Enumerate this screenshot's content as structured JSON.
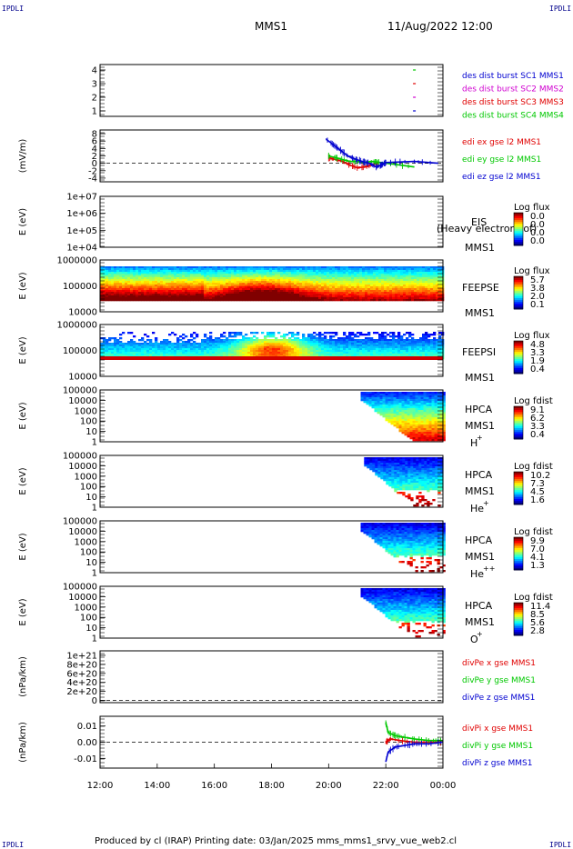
{
  "corner_tag": "IPDLI",
  "header": {
    "mission": "MMS1",
    "datetime": "11/Aug/2022 12:00"
  },
  "footer": {
    "text": "Produced by cl (IRAP)   Printing date: 03/Jan/2025   mms_mms1_srvy_vue_web2.cl"
  },
  "colors": {
    "red": "#e00000",
    "green": "#00c800",
    "blue": "#0000d0",
    "magenta": "#d000d0"
  },
  "chart_data": [
    {
      "type": "line",
      "xlim": [
        "12:00",
        "00:00"
      ],
      "xticks": [
        "12:00",
        "14:00",
        "16:00",
        "18:00",
        "20:00",
        "22:00",
        "00:00"
      ],
      "ylabel": "",
      "yticks": [
        "1",
        "2",
        "3",
        "4"
      ],
      "ylim": [
        0.6,
        4.4
      ],
      "legend": [
        "des dist burst SC1 MMS1",
        "des dist burst SC2 MMS2",
        "des dist burst SC3 MMS3",
        "des dist burst SC4 MMS4"
      ],
      "series": [
        {
          "name": "des dist burst SC1 MMS1",
          "color": "blue",
          "points": [
            [
              "23:00",
              1
            ]
          ]
        },
        {
          "name": "des dist burst SC2 MMS2",
          "color": "magenta",
          "points": [
            [
              "23:00",
              2
            ]
          ]
        },
        {
          "name": "des dist burst SC3 MMS3",
          "color": "red",
          "points": [
            [
              "23:00",
              3
            ]
          ]
        },
        {
          "name": "des dist burst SC4 MMS4",
          "color": "green",
          "points": [
            [
              "23:00",
              4
            ]
          ]
        }
      ]
    },
    {
      "type": "line",
      "ylabel": "(mV/m)",
      "yticks": [
        "8",
        "6",
        "4",
        "2",
        "0",
        "-2",
        "-4"
      ],
      "ylim": [
        -5,
        9
      ],
      "zero_line": true,
      "legend": [
        "edi ex gse l2 MMS1",
        "edi ey gse l2 MMS1",
        "edi ez gse l2 MMS1"
      ],
      "series": [
        {
          "name": "edi ex gse l2 MMS1",
          "color": "red",
          "points": [
            [
              "20:00",
              1.5
            ],
            [
              "20:15",
              1.0
            ],
            [
              "20:30",
              0.5
            ],
            [
              "20:45",
              -0.5
            ],
            [
              "21:00",
              -1.2
            ],
            [
              "21:15",
              -1.0
            ],
            [
              "21:30",
              -0.5
            ],
            [
              "21:45",
              0.0
            ]
          ]
        },
        {
          "name": "edi ey gse l2 MMS1",
          "color": "green",
          "points": [
            [
              "20:00",
              2.0
            ],
            [
              "20:15",
              1.5
            ],
            [
              "20:30",
              1.0
            ],
            [
              "20:45",
              0.5
            ],
            [
              "21:00",
              0.5
            ],
            [
              "21:15",
              0.2
            ],
            [
              "21:30",
              0.5
            ],
            [
              "21:45",
              0.3
            ],
            [
              "23:00",
              -1.0
            ]
          ]
        },
        {
          "name": "edi ez gse l2 MMS1",
          "color": "blue",
          "points": [
            [
              "19:55",
              6.5
            ],
            [
              "20:10",
              5.0
            ],
            [
              "20:25",
              3.5
            ],
            [
              "20:40",
              2.0
            ],
            [
              "20:55",
              1.2
            ],
            [
              "21:10",
              0.5
            ],
            [
              "21:25",
              0.0
            ],
            [
              "21:40",
              -1.0
            ],
            [
              "21:50",
              -0.5
            ],
            [
              "22:00",
              0.2
            ],
            [
              "23:00",
              0.5
            ],
            [
              "23:50",
              0.0
            ]
          ]
        }
      ]
    },
    {
      "type": "heatmap",
      "ylabel": "E (eV)",
      "ylog": true,
      "yticks": [
        "1e+07",
        "1e+06",
        "1e+05",
        "1e+04"
      ],
      "instrument": "EIS",
      "overlay": "(Heavy electron tof)",
      "craft": "MMS1",
      "colorbar": {
        "title": "Log flux",
        "ticks": [
          "0.0",
          "0.0",
          "0.0",
          "0.0"
        ]
      }
    },
    {
      "type": "heatmap",
      "ylabel": "E (eV)",
      "ylog": true,
      "yticks": [
        "1000000",
        "100000",
        "10000"
      ],
      "instrument": "FEEPSE",
      "craft": "MMS1",
      "colorbar": {
        "title": "Log flux",
        "ticks": [
          "5.7",
          "3.8",
          "2.0",
          "0.1"
        ]
      }
    },
    {
      "type": "heatmap",
      "ylabel": "E (eV)",
      "ylog": true,
      "yticks": [
        "1000000",
        "100000",
        "10000"
      ],
      "instrument": "FEEPSI",
      "craft": "MMS1",
      "colorbar": {
        "title": "Log flux",
        "ticks": [
          "4.8",
          "3.3",
          "1.9",
          "0.4"
        ]
      }
    },
    {
      "type": "heatmap",
      "ylabel": "E (eV)",
      "ylog": true,
      "yticks": [
        "100000",
        "10000",
        "1000",
        "100",
        "10",
        "1"
      ],
      "instrument": "HPCA",
      "craft": "MMS1",
      "species": "H",
      "charge": "+",
      "colorbar": {
        "title": "Log fdist",
        "ticks": [
          "9.1",
          "6.2",
          "3.3",
          "0.4"
        ]
      }
    },
    {
      "type": "heatmap",
      "ylabel": "E (eV)",
      "ylog": true,
      "yticks": [
        "100000",
        "10000",
        "1000",
        "100",
        "10",
        "1"
      ],
      "instrument": "HPCA",
      "craft": "MMS1",
      "species": "He",
      "charge": "+",
      "colorbar": {
        "title": "Log fdist",
        "ticks": [
          "10.2",
          "7.3",
          "4.5",
          "1.6"
        ]
      }
    },
    {
      "type": "heatmap",
      "ylabel": "E (eV)",
      "ylog": true,
      "yticks": [
        "100000",
        "10000",
        "1000",
        "100",
        "10",
        "1"
      ],
      "instrument": "HPCA",
      "craft": "MMS1",
      "species": "He",
      "charge": "++",
      "colorbar": {
        "title": "Log fdist",
        "ticks": [
          "9.9",
          "7.0",
          "4.1",
          "1.3"
        ]
      }
    },
    {
      "type": "heatmap",
      "ylabel": "E (eV)",
      "ylog": true,
      "yticks": [
        "100000",
        "10000",
        "1000",
        "100",
        "10",
        "1"
      ],
      "instrument": "HPCA",
      "craft": "MMS1",
      "species": "O",
      "charge": "+",
      "colorbar": {
        "title": "Log fdist",
        "ticks": [
          "11.4",
          "8.5",
          "5.6",
          "2.8"
        ]
      }
    },
    {
      "type": "line",
      "ylabel": "(nPa/km)",
      "yticks": [
        "1e+21",
        "8e+20",
        "6e+20",
        "4e+20",
        "2e+20",
        "0"
      ],
      "ylim": [
        -5e+19,
        1.1e+21
      ],
      "zero_line": true,
      "legend": [
        "divPe x gse MMS1",
        "divPe y gse MMS1",
        "divPe z gse MMS1"
      ],
      "series": []
    },
    {
      "type": "line",
      "ylabel": "(nPa/km)",
      "yticks": [
        "0.01",
        "0.00",
        "-0.01"
      ],
      "ylim": [
        -0.016,
        0.016
      ],
      "zero_line": true,
      "legend": [
        "divPi x gse MMS1",
        "divPi y gse MMS1",
        "divPi z gse MMS1"
      ],
      "series": [
        {
          "name": "divPi x gse MMS1",
          "color": "red",
          "points": [
            [
              "22:00",
              0.0
            ],
            [
              "22:10",
              0.002
            ],
            [
              "22:30",
              0.001
            ],
            [
              "23:00",
              0.0
            ],
            [
              "23:30",
              0.0
            ],
            [
              "00:00",
              0.0
            ]
          ]
        },
        {
          "name": "divPi y gse MMS1",
          "color": "green",
          "points": [
            [
              "22:00",
              0.012
            ],
            [
              "22:05",
              0.006
            ],
            [
              "22:20",
              0.004
            ],
            [
              "22:40",
              0.003
            ],
            [
              "23:00",
              0.002
            ],
            [
              "23:30",
              0.001
            ],
            [
              "00:00",
              0.001
            ]
          ]
        },
        {
          "name": "divPi z gse MMS1",
          "color": "blue",
          "points": [
            [
              "22:00",
              -0.012
            ],
            [
              "22:05",
              -0.006
            ],
            [
              "22:20",
              -0.003
            ],
            [
              "22:40",
              -0.002
            ],
            [
              "23:00",
              -0.001
            ],
            [
              "23:30",
              -0.001
            ],
            [
              "00:00",
              0.0
            ]
          ]
        }
      ]
    }
  ]
}
